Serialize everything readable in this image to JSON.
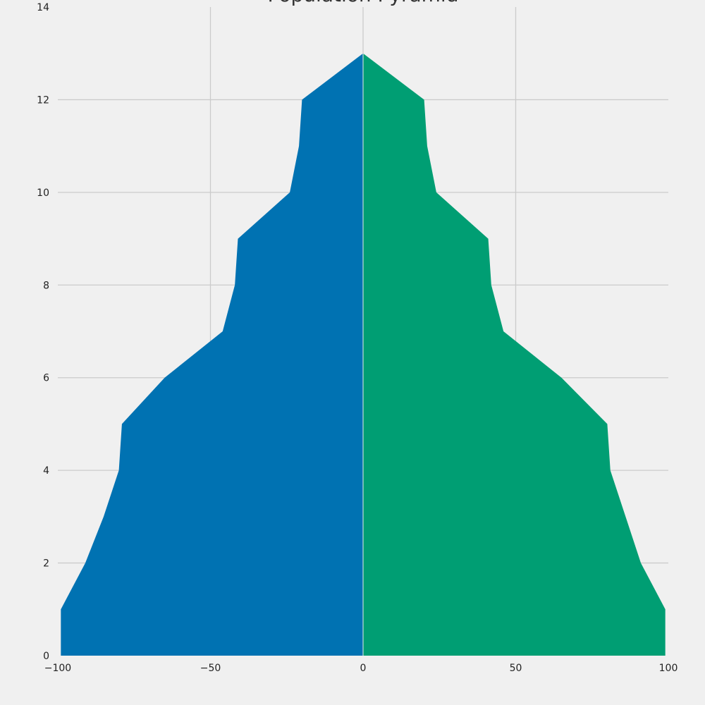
{
  "chart_data": {
    "type": "area",
    "title": "Population Pyramid",
    "xlabel": "",
    "ylabel": "",
    "xlim": [
      -100,
      100
    ],
    "ylim": [
      0,
      14
    ],
    "x_ticks": [
      -100,
      -50,
      0,
      50,
      100
    ],
    "x_tick_labels": [
      "−100",
      "−50",
      "0",
      "50",
      "100"
    ],
    "y_ticks": [
      0,
      2,
      4,
      6,
      8,
      10,
      12,
      14
    ],
    "y_tick_labels": [
      "0",
      "2",
      "4",
      "6",
      "8",
      "10",
      "12",
      "14"
    ],
    "grid": true,
    "y": [
      0,
      1,
      2,
      3,
      4,
      5,
      6,
      7,
      8,
      9,
      10,
      11,
      12,
      13
    ],
    "series": [
      {
        "color": "#0072b2",
        "values": [
          -99,
          -99,
          -91,
          -85,
          -80,
          -79,
          -65,
          -46,
          -42,
          -41,
          -24,
          -21,
          -20,
          0
        ]
      },
      {
        "color": "#009e73",
        "values": [
          99,
          99,
          91,
          86,
          81,
          80,
          65,
          46,
          42,
          41,
          24,
          21,
          20,
          0
        ]
      }
    ],
    "colors": {
      "background": "#f0f0f0",
      "grid": "#cbcbcb"
    }
  }
}
